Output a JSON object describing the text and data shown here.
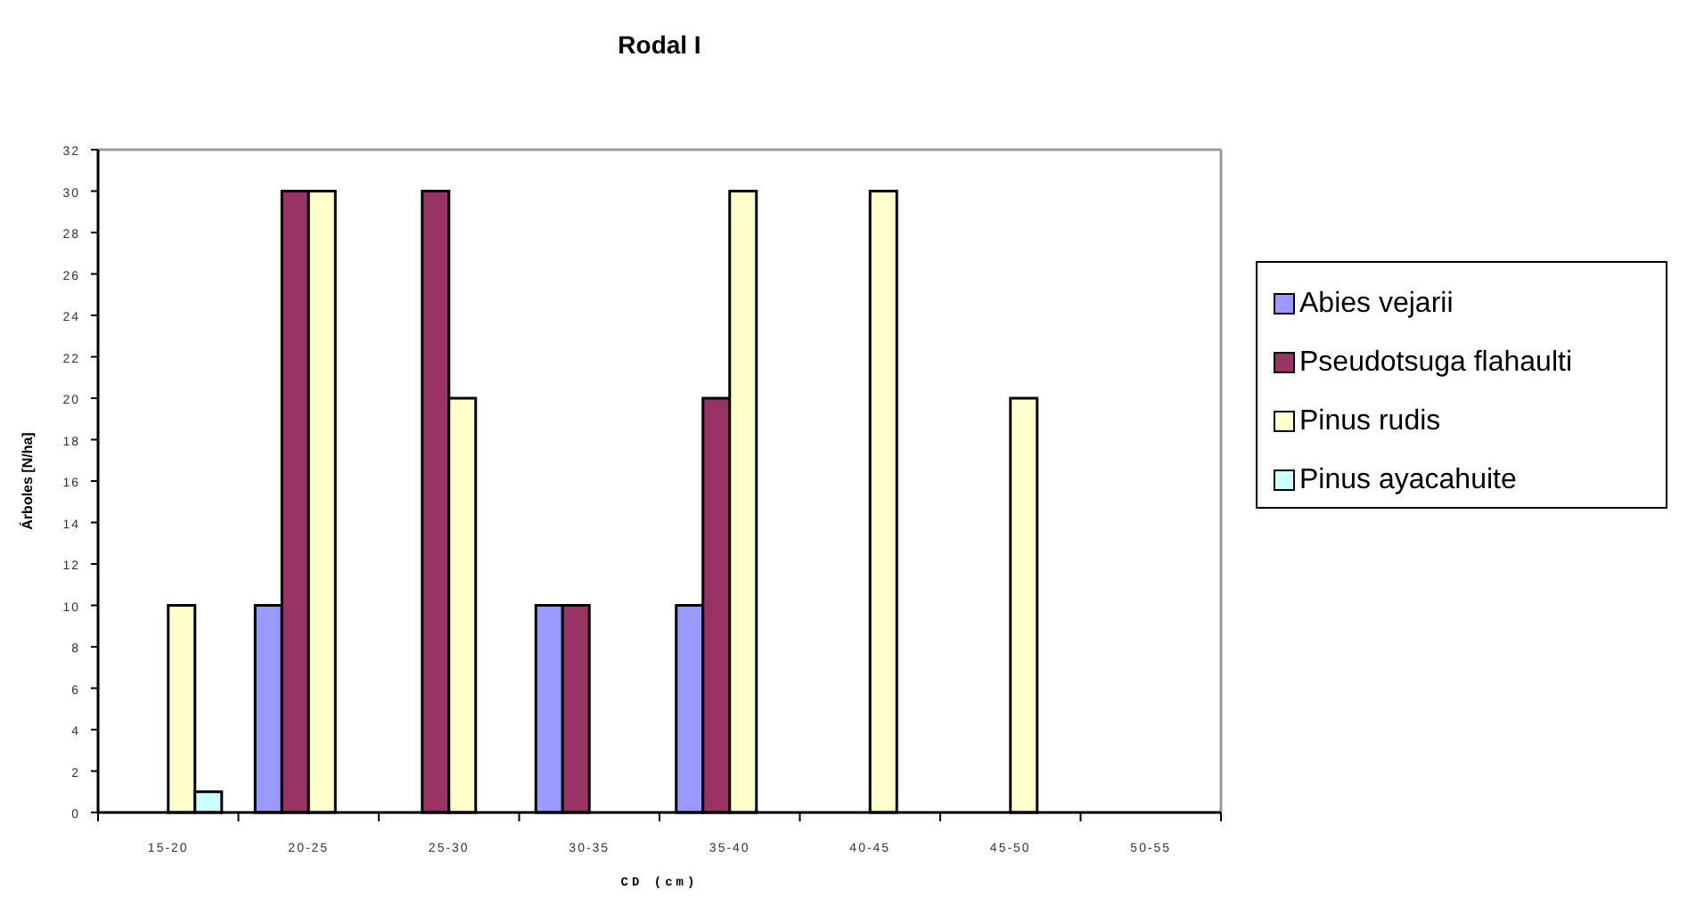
{
  "chart_data": {
    "type": "bar",
    "title": "Rodal I",
    "xlabel": "CD (cm)",
    "ylabel": "Árboles [N/ha]",
    "categories": [
      "15-20",
      "20-25",
      "25-30",
      "30-35",
      "35-40",
      "40-45",
      "45-50",
      "50-55"
    ],
    "series": [
      {
        "name": "Abies vejarii",
        "color": "#9999ff",
        "values": [
          0,
          10,
          0,
          10,
          10,
          0,
          0,
          0
        ]
      },
      {
        "name": "Pseudotsuga flahaulti",
        "color": "#993366",
        "values": [
          0,
          30,
          30,
          10,
          20,
          0,
          0,
          0
        ]
      },
      {
        "name": "Pinus rudis",
        "color": "#ffffcc",
        "values": [
          10,
          30,
          20,
          0,
          30,
          30,
          20,
          0
        ]
      },
      {
        "name": "Pinus ayacahuite",
        "color": "#ccffff",
        "values": [
          1,
          0,
          0,
          0,
          0,
          0,
          0,
          0
        ]
      }
    ],
    "ylim": [
      0,
      32
    ],
    "yticks": [
      0,
      2,
      4,
      6,
      8,
      10,
      12,
      14,
      16,
      18,
      20,
      22,
      24,
      26,
      28,
      30,
      32
    ],
    "grid": false,
    "legend": "right"
  }
}
